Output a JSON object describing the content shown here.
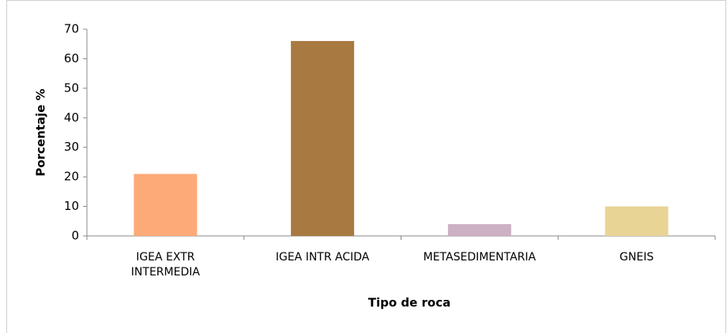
{
  "chart_data": {
    "type": "bar",
    "xlabel": "Tipo de roca",
    "ylabel": "Porcentaje %",
    "categories": [
      "IGEA EXTR INTERMEDIA",
      "IGEA INTR ACIDA",
      "METASEDIMENTARIA",
      "GNEIS"
    ],
    "values": [
      21,
      66,
      4,
      10
    ],
    "colors": [
      "#fdaa78",
      "#a87941",
      "#cdb0c4",
      "#e8d596"
    ],
    "ylim": [
      0,
      70
    ],
    "yticks": [
      0,
      10,
      20,
      30,
      40,
      50,
      60,
      70
    ],
    "grid": false
  }
}
